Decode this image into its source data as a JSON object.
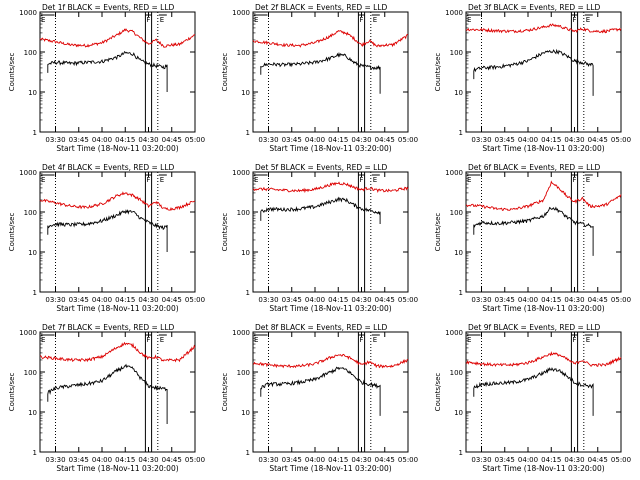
{
  "chart_data": {
    "type": "line",
    "ylabel": "Counts/sec",
    "xlabel": "Start Time (18-Nov-11 03:20:00)",
    "y_scale": "log",
    "ylim": [
      1,
      1000
    ],
    "xlim_minutes": [
      0,
      100
    ],
    "y_ticks": [
      "1",
      "10",
      "100",
      "1000"
    ],
    "x_ticks": [
      "03:30",
      "03:45",
      "04:00",
      "04:15",
      "04:30",
      "04:45",
      "05:00"
    ],
    "x_tick_minutes": [
      10,
      25,
      40,
      55,
      70,
      85,
      100
    ],
    "flag_labels": {
      "E": "E",
      "F": "F"
    },
    "flag_times": {
      "E_start": "03:20",
      "E_mid": "03:30",
      "F_start": "04:28",
      "F_end": "04:32",
      "E_end": "04:36"
    },
    "colors": {
      "events": "#000000",
      "lld": "#dd0000"
    },
    "panels": [
      {
        "title": "Det 1f BLACK = Events, RED = LLD",
        "lld": {
          "t": [
            0,
            10,
            20,
            30,
            40,
            50,
            55,
            60,
            65,
            70,
            75,
            80,
            85,
            90,
            100
          ],
          "v": [
            210,
            180,
            150,
            145,
            170,
            270,
            360,
            320,
            220,
            160,
            200,
            140,
            150,
            155,
            270
          ]
        },
        "events": {
          "t": [
            5,
            10,
            20,
            30,
            40,
            50,
            55,
            60,
            65,
            70,
            75,
            80,
            82
          ],
          "v": [
            50,
            55,
            52,
            55,
            58,
            75,
            95,
            90,
            60,
            50,
            45,
            42,
            45
          ],
          "drop": [
            82,
            10
          ]
        }
      },
      {
        "title": "Det 2f BLACK = Events, RED = LLD",
        "lld": {
          "t": [
            0,
            10,
            20,
            30,
            40,
            50,
            55,
            60,
            65,
            70,
            75,
            80,
            85,
            90,
            100
          ],
          "v": [
            190,
            170,
            150,
            145,
            170,
            250,
            330,
            300,
            220,
            150,
            190,
            140,
            150,
            150,
            260
          ]
        },
        "events": {
          "t": [
            5,
            10,
            20,
            30,
            40,
            50,
            55,
            60,
            65,
            70,
            75,
            80,
            82
          ],
          "v": [
            45,
            50,
            48,
            50,
            55,
            70,
            85,
            80,
            55,
            45,
            42,
            40,
            42
          ],
          "drop": [
            82,
            9
          ]
        }
      },
      {
        "title": "Det 3f BLACK = Events, RED = LLD",
        "lld": {
          "t": [
            0,
            10,
            20,
            30,
            40,
            50,
            55,
            60,
            65,
            70,
            75,
            80,
            85,
            90,
            100
          ],
          "v": [
            370,
            360,
            340,
            330,
            350,
            420,
            470,
            450,
            380,
            330,
            380,
            340,
            330,
            330,
            380
          ]
        },
        "events": {
          "t": [
            5,
            10,
            20,
            30,
            40,
            50,
            55,
            60,
            65,
            70,
            75,
            80,
            82
          ],
          "v": [
            35,
            40,
            42,
            48,
            60,
            95,
            105,
            100,
            80,
            60,
            55,
            48,
            50
          ],
          "drop": [
            82,
            8
          ]
        }
      },
      {
        "title": "Det 4f BLACK = Events, RED = LLD",
        "lld": {
          "t": [
            0,
            10,
            20,
            30,
            40,
            50,
            55,
            60,
            65,
            70,
            75,
            80,
            85,
            90,
            100
          ],
          "v": [
            200,
            170,
            140,
            130,
            160,
            260,
            300,
            260,
            200,
            140,
            180,
            120,
            120,
            130,
            190
          ]
        },
        "events": {
          "t": [
            5,
            10,
            20,
            30,
            40,
            50,
            55,
            60,
            65,
            70,
            75,
            80,
            82
          ],
          "v": [
            45,
            50,
            48,
            50,
            60,
            85,
            105,
            100,
            70,
            55,
            45,
            40,
            45
          ],
          "drop": [
            82,
            10
          ]
        }
      },
      {
        "title": "Det 5f BLACK = Events, RED = LLD",
        "lld": {
          "t": [
            0,
            10,
            20,
            30,
            40,
            50,
            55,
            60,
            65,
            70,
            75,
            80,
            85,
            90,
            100
          ],
          "v": [
            380,
            370,
            350,
            340,
            370,
            480,
            530,
            500,
            420,
            360,
            400,
            350,
            340,
            340,
            400
          ]
        },
        "events": {
          "t": [
            5,
            10,
            20,
            30,
            40,
            50,
            55,
            60,
            65,
            70,
            75,
            80,
            82
          ],
          "v": [
            100,
            120,
            115,
            120,
            135,
            180,
            210,
            200,
            150,
            120,
            110,
            100,
            100
          ],
          "drop": [
            82,
            50
          ]
        }
      },
      {
        "title": "Det 6f BLACK = Events, RED = LLD",
        "lld": {
          "t": [
            0,
            10,
            20,
            30,
            40,
            50,
            55,
            60,
            65,
            70,
            75,
            80,
            85,
            90,
            100
          ],
          "v": [
            150,
            140,
            120,
            115,
            140,
            200,
            550,
            400,
            250,
            180,
            220,
            140,
            140,
            150,
            260
          ]
        },
        "events": {
          "t": [
            5,
            10,
            20,
            30,
            40,
            50,
            55,
            60,
            65,
            70,
            75,
            80,
            82
          ],
          "v": [
            45,
            55,
            52,
            55,
            60,
            80,
            130,
            110,
            75,
            55,
            50,
            45,
            45
          ],
          "drop": [
            82,
            8
          ]
        }
      },
      {
        "title": "Det 7f BLACK = Events, RED = LLD",
        "lld": {
          "t": [
            0,
            10,
            20,
            30,
            40,
            50,
            55,
            60,
            65,
            70,
            75,
            80,
            85,
            90,
            100
          ],
          "v": [
            240,
            220,
            200,
            200,
            240,
            420,
            520,
            460,
            300,
            220,
            240,
            190,
            200,
            200,
            440
          ]
        },
        "events": {
          "t": [
            5,
            10,
            20,
            30,
            40,
            50,
            55,
            60,
            65,
            70,
            75,
            80,
            82
          ],
          "v": [
            30,
            40,
            45,
            50,
            60,
            110,
            140,
            120,
            70,
            45,
            40,
            38,
            38
          ],
          "drop": [
            82,
            5
          ]
        }
      },
      {
        "title": "Det 8f BLACK = Events, RED = LLD",
        "lld": {
          "t": [
            0,
            10,
            20,
            30,
            40,
            50,
            55,
            60,
            65,
            70,
            75,
            80,
            85,
            90,
            100
          ],
          "v": [
            170,
            150,
            140,
            140,
            160,
            230,
            270,
            250,
            200,
            150,
            180,
            140,
            140,
            140,
            200
          ]
        },
        "events": {
          "t": [
            5,
            10,
            20,
            30,
            40,
            50,
            55,
            60,
            65,
            70,
            75,
            80,
            82
          ],
          "v": [
            40,
            50,
            50,
            55,
            65,
            100,
            125,
            115,
            80,
            55,
            50,
            45,
            45
          ],
          "drop": [
            82,
            8
          ]
        }
      },
      {
        "title": "Det 9f BLACK = Events, RED = LLD",
        "lld": {
          "t": [
            0,
            10,
            20,
            30,
            40,
            50,
            55,
            60,
            65,
            70,
            75,
            80,
            85,
            90,
            100
          ],
          "v": [
            180,
            160,
            150,
            150,
            170,
            240,
            290,
            270,
            210,
            160,
            200,
            150,
            150,
            150,
            230
          ]
        },
        "events": {
          "t": [
            5,
            10,
            20,
            30,
            40,
            50,
            55,
            60,
            65,
            70,
            75,
            80,
            82
          ],
          "v": [
            40,
            50,
            52,
            55,
            65,
            95,
            120,
            110,
            80,
            55,
            48,
            45,
            45
          ],
          "drop": [
            82,
            8
          ]
        }
      }
    ]
  }
}
